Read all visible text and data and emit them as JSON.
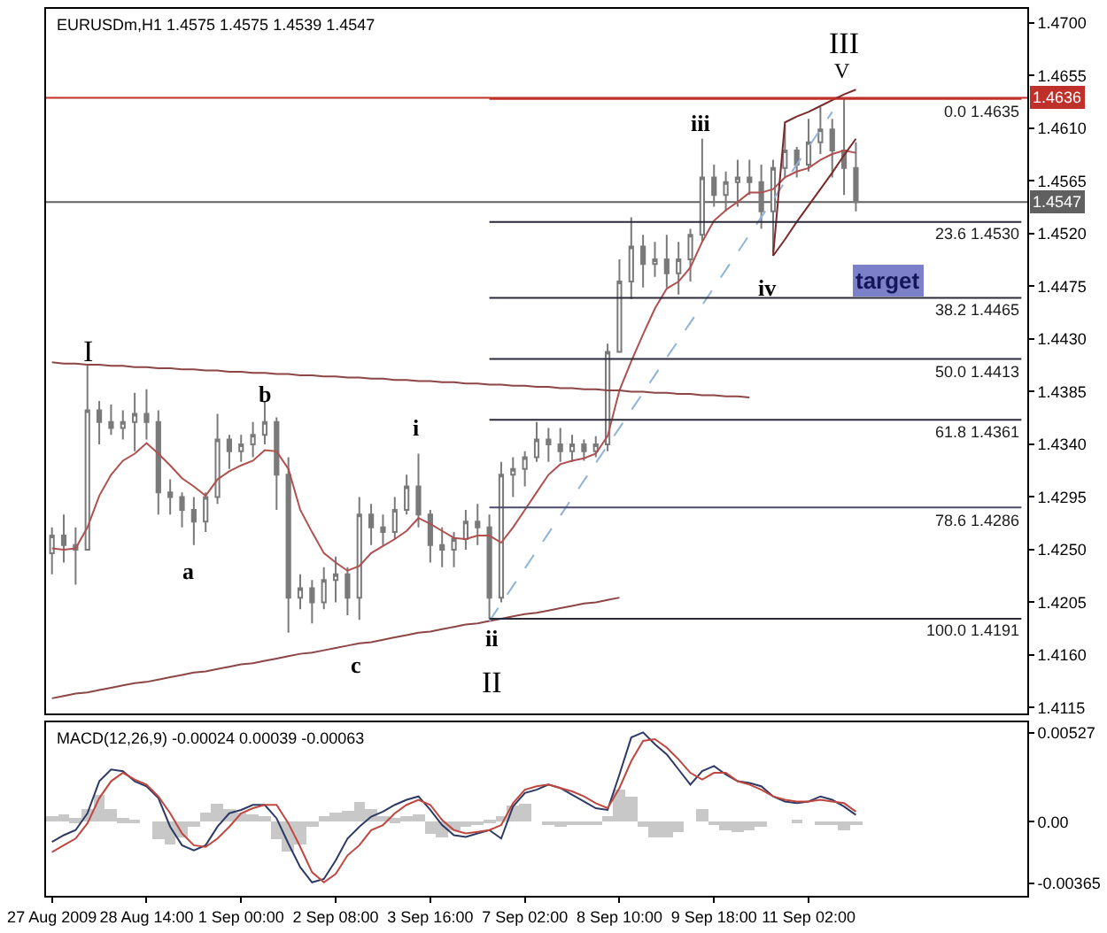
{
  "chart_data": [
    {
      "type": "candlestick",
      "title": "EURUSDm,H1 1.4575 1.4575 1.4539 1.4547",
      "categories": [
        null,
        null,
        null,
        null,
        null,
        null,
        null,
        null,
        null,
        null,
        null,
        null,
        null,
        null,
        null,
        null,
        null,
        null,
        null,
        null,
        null,
        null,
        null,
        null,
        null,
        null,
        null,
        null,
        null,
        null,
        null,
        null,
        null,
        null,
        null,
        null,
        null,
        null,
        null,
        null,
        null,
        null,
        null,
        null,
        null,
        null,
        null,
        null,
        null,
        null,
        null,
        null,
        null,
        null,
        null,
        null,
        null,
        null,
        null,
        null,
        null,
        null,
        null,
        null,
        null,
        null,
        null,
        null,
        null,
        null,
        null,
        null,
        null,
        null,
        null,
        null,
        null,
        null,
        null,
        null,
        null,
        null,
        null
      ],
      "ohlc": [
        [
          1.4247,
          1.4269,
          1.4229,
          1.4262
        ],
        [
          1.4262,
          1.428,
          1.4239,
          1.4254
        ],
        [
          1.4254,
          1.4269,
          1.422,
          1.425
        ],
        [
          1.425,
          1.4408,
          1.425,
          1.4369
        ],
        [
          1.4369,
          1.4377,
          1.434,
          1.4359
        ],
        [
          1.4359,
          1.4374,
          1.4348,
          1.4354
        ],
        [
          1.4354,
          1.4369,
          1.4344,
          1.4359
        ],
        [
          1.4359,
          1.4384,
          1.4334,
          1.4366
        ],
        [
          1.4366,
          1.4387,
          1.4344,
          1.4359
        ],
        [
          1.4359,
          1.4369,
          1.428,
          1.4299
        ],
        [
          1.4299,
          1.431,
          1.428,
          1.4295
        ],
        [
          1.4295,
          1.4299,
          1.4269,
          1.4284
        ],
        [
          1.4284,
          1.4295,
          1.4254,
          1.4274
        ],
        [
          1.4274,
          1.4299,
          1.4265,
          1.4295
        ],
        [
          1.4295,
          1.4366,
          1.4289,
          1.4344
        ],
        [
          1.4344,
          1.4348,
          1.4319,
          1.4334
        ],
        [
          1.4334,
          1.4348,
          1.4325,
          1.434
        ],
        [
          1.434,
          1.4359,
          1.4329,
          1.4348
        ],
        [
          1.4348,
          1.4377,
          1.434,
          1.4359
        ],
        [
          1.4359,
          1.4363,
          1.4284,
          1.4314
        ],
        [
          1.4314,
          1.4329,
          1.4179,
          1.4209
        ],
        [
          1.4209,
          1.4229,
          1.4199,
          1.4217
        ],
        [
          1.4217,
          1.4224,
          1.4187,
          1.4205
        ],
        [
          1.4205,
          1.4235,
          1.4199,
          1.4224
        ],
        [
          1.4224,
          1.4244,
          1.4205,
          1.4229
        ],
        [
          1.4229,
          1.4235,
          1.4194,
          1.4209
        ],
        [
          1.4209,
          1.4295,
          1.419,
          1.428
        ],
        [
          1.428,
          1.4289,
          1.4254,
          1.4269
        ],
        [
          1.4269,
          1.428,
          1.4254,
          1.4265
        ],
        [
          1.4265,
          1.4295,
          1.4259,
          1.4284
        ],
        [
          1.4284,
          1.4314,
          1.428,
          1.4304
        ],
        [
          1.4304,
          1.4332,
          1.4269,
          1.428
        ],
        [
          1.428,
          1.4284,
          1.4239,
          1.4254
        ],
        [
          1.4254,
          1.4269,
          1.4235,
          1.425
        ],
        [
          1.425,
          1.4265,
          1.4235,
          1.4259
        ],
        [
          1.4259,
          1.4284,
          1.425,
          1.4274
        ],
        [
          1.4274,
          1.4289,
          1.4254,
          1.4269
        ],
        [
          1.4269,
          1.428,
          1.4191,
          1.4209
        ],
        [
          1.4209,
          1.4325,
          1.4205,
          1.4314
        ],
        [
          1.4314,
          1.4329,
          1.4295,
          1.4319
        ],
        [
          1.4319,
          1.4334,
          1.4304,
          1.4329
        ],
        [
          1.4329,
          1.4359,
          1.4325,
          1.4344
        ],
        [
          1.4344,
          1.4354,
          1.4325,
          1.434
        ],
        [
          1.434,
          1.4354,
          1.4325,
          1.4334
        ],
        [
          1.4334,
          1.4348,
          1.4325,
          1.434
        ],
        [
          1.434,
          1.4344,
          1.4326,
          1.4334
        ],
        [
          1.4334,
          1.4347,
          1.4329,
          1.434
        ],
        [
          1.434,
          1.4426,
          1.4334,
          1.4419
        ],
        [
          1.4419,
          1.4498,
          1.4419,
          1.4479
        ],
        [
          1.4479,
          1.4534,
          1.4464,
          1.4509
        ],
        [
          1.4509,
          1.4519,
          1.4474,
          1.4494
        ],
        [
          1.4494,
          1.4513,
          1.4483,
          1.4498
        ],
        [
          1.4498,
          1.4519,
          1.4474,
          1.4486
        ],
        [
          1.4486,
          1.4513,
          1.4468,
          1.4498
        ],
        [
          1.4498,
          1.4524,
          1.4479,
          1.4519
        ],
        [
          1.4519,
          1.4601,
          1.4513,
          1.4568
        ],
        [
          1.4568,
          1.4579,
          1.4543,
          1.4553
        ],
        [
          1.4553,
          1.4573,
          1.4539,
          1.4564
        ],
        [
          1.4564,
          1.4583,
          1.4543,
          1.4568
        ],
        [
          1.4568,
          1.4583,
          1.4553,
          1.4564
        ],
        [
          1.4564,
          1.4579,
          1.4524,
          1.4539
        ],
        [
          1.4539,
          1.4583,
          1.4504,
          1.4576
        ],
        [
          1.4576,
          1.4613,
          1.4568,
          1.4591
        ],
        [
          1.4591,
          1.4594,
          1.4568,
          1.4579
        ],
        [
          1.4579,
          1.4618,
          1.4573,
          1.4598
        ],
        [
          1.4598,
          1.4628,
          1.4588,
          1.4609
        ],
        [
          1.4609,
          1.4618,
          1.4568,
          1.4591
        ],
        [
          1.4591,
          1.4636,
          1.4553,
          1.4576
        ],
        [
          1.4576,
          1.4598,
          1.4539,
          1.4547
        ],
        null,
        null,
        null,
        null,
        null,
        null,
        null,
        null,
        null,
        null,
        null,
        null,
        null,
        null
      ],
      "color": "#7a7a7a",
      "series": [
        {
          "type": "line",
          "color": "#b05050",
          "values": [
            1.4251,
            1.425,
            1.4251,
            1.4269,
            1.4296,
            1.4314,
            1.4326,
            1.4332,
            1.4341,
            1.4332,
            1.4322,
            1.4311,
            1.4304,
            1.4296,
            1.431,
            1.4317,
            1.4322,
            1.4326,
            1.4335,
            1.4334,
            1.4319,
            1.4284,
            1.4265,
            1.4247,
            1.4239,
            1.4232,
            1.4236,
            1.4247,
            1.4253,
            1.4259,
            1.4266,
            1.4277,
            1.4272,
            1.4266,
            1.426,
            1.4259,
            1.4262,
            1.4262,
            1.4256,
            1.4269,
            1.4284,
            1.4299,
            1.4314,
            1.4323,
            1.4326,
            1.4328,
            1.4332,
            1.4347,
            1.4386,
            1.4411,
            1.4434,
            1.4456,
            1.4473,
            1.4479,
            1.4491,
            1.4513,
            1.4531,
            1.454,
            1.4547,
            1.4555,
            1.4555,
            1.4558,
            1.4568,
            1.4573,
            1.4576,
            1.4583,
            1.4588,
            1.4591,
            1.4589,
            null,
            null,
            null,
            null,
            null,
            null,
            null,
            null,
            null,
            null,
            null,
            null,
            null,
            null
          ]
        },
        {
          "type": "line",
          "color": "#8c4646",
          "values": [
            1.441,
            1.4409,
            1.4409,
            1.4408,
            1.4408,
            1.4407,
            1.4407,
            1.4406,
            1.4406,
            1.4405,
            1.4405,
            1.4404,
            1.4404,
            1.4403,
            1.4403,
            1.4402,
            1.4402,
            1.4401,
            1.4401,
            1.44,
            1.44,
            1.4399,
            1.4399,
            1.4398,
            1.4398,
            1.4397,
            1.4397,
            1.4396,
            1.4396,
            1.4395,
            1.4395,
            1.4394,
            1.4394,
            1.4393,
            1.4393,
            1.4392,
            1.4392,
            1.4391,
            1.4391,
            1.439,
            1.439,
            1.4389,
            1.4389,
            1.4388,
            1.4388,
            1.4387,
            1.4387,
            1.4386,
            1.4386,
            1.4385,
            1.4385,
            1.4384,
            1.4384,
            1.4383,
            1.4383,
            1.4382,
            1.4382,
            1.4381,
            1.4381,
            1.438,
            null,
            null,
            null,
            null,
            null,
            null,
            null,
            null,
            null,
            null,
            null,
            null,
            null,
            null,
            null,
            null,
            null,
            null,
            null,
            null,
            null,
            null,
            null
          ]
        },
        {
          "type": "line",
          "color": "#8c4646",
          "values": [
            1.4123,
            1.4125,
            1.4127,
            1.4128,
            1.413,
            1.4132,
            1.4134,
            1.4136,
            1.4137,
            1.4139,
            1.4141,
            1.4143,
            1.4145,
            1.4146,
            1.4148,
            1.415,
            1.4152,
            1.4153,
            1.4155,
            1.4157,
            1.4159,
            1.4161,
            1.4162,
            1.4164,
            1.4166,
            1.4168,
            1.417,
            1.4171,
            1.4173,
            1.4175,
            1.4177,
            1.4179,
            1.418,
            1.4182,
            1.4184,
            1.4186,
            1.4187,
            1.4189,
            1.4191,
            1.4193,
            1.4195,
            1.4196,
            1.4198,
            1.42,
            1.4202,
            1.4204,
            1.4205,
            1.4207,
            1.4209,
            null,
            null,
            null,
            null,
            null,
            null,
            null,
            null,
            null,
            null,
            null,
            null,
            null,
            null,
            null,
            null,
            null,
            null,
            null,
            null,
            null,
            null,
            null,
            null,
            null,
            null,
            null,
            null,
            null,
            null,
            null,
            null,
            null,
            null
          ]
        },
        {
          "type": "line",
          "color": "#8fb3d9",
          "line_style": "dashed",
          "values": [
            null,
            null,
            null,
            null,
            null,
            null,
            null,
            null,
            null,
            null,
            null,
            null,
            null,
            null,
            null,
            null,
            null,
            null,
            null,
            null,
            null,
            null,
            null,
            null,
            null,
            null,
            null,
            null,
            null,
            null,
            null,
            null,
            null,
            null,
            null,
            null,
            null,
            1.4189,
            1.4204,
            1.4219,
            1.4234,
            1.4249,
            1.4264,
            1.4279,
            1.4294,
            1.4309,
            1.4324,
            1.4339,
            1.4354,
            1.4369,
            1.4384,
            1.4399,
            1.4414,
            1.4429,
            1.4444,
            1.4459,
            1.4474,
            1.4489,
            1.4504,
            1.4519,
            1.4534,
            1.4549,
            1.4564,
            1.4579,
            1.4594,
            1.4609,
            1.4624,
            null,
            null,
            null,
            null,
            null,
            null,
            null,
            null,
            null,
            null,
            null,
            null,
            null,
            null,
            null,
            null
          ]
        },
        {
          "type": "line",
          "color": "#7a2a2a",
          "values": [
            null,
            null,
            null,
            null,
            null,
            null,
            null,
            null,
            null,
            null,
            null,
            null,
            null,
            null,
            null,
            null,
            null,
            null,
            null,
            null,
            null,
            null,
            null,
            null,
            null,
            null,
            null,
            null,
            null,
            null,
            null,
            null,
            null,
            null,
            null,
            null,
            null,
            null,
            null,
            null,
            null,
            null,
            null,
            null,
            null,
            null,
            null,
            null,
            null,
            null,
            null,
            null,
            null,
            null,
            null,
            null,
            null,
            null,
            null,
            null,
            null,
            1.4501,
            1.4615,
            1.462,
            1.4624,
            1.4629,
            1.4634,
            1.4639,
            1.4643,
            null,
            null,
            null,
            null,
            null,
            null,
            null,
            null,
            null,
            null,
            null,
            null,
            null,
            null
          ]
        },
        {
          "type": "line",
          "color": "#7a2a2a",
          "values": [
            null,
            null,
            null,
            null,
            null,
            null,
            null,
            null,
            null,
            null,
            null,
            null,
            null,
            null,
            null,
            null,
            null,
            null,
            null,
            null,
            null,
            null,
            null,
            null,
            null,
            null,
            null,
            null,
            null,
            null,
            null,
            null,
            null,
            null,
            null,
            null,
            null,
            null,
            null,
            null,
            null,
            null,
            null,
            null,
            null,
            null,
            null,
            null,
            null,
            null,
            null,
            null,
            null,
            null,
            null,
            null,
            null,
            null,
            null,
            null,
            null,
            1.4501,
            1.4515,
            1.453,
            1.4544,
            1.4558,
            1.4572,
            1.4587,
            1.4601,
            null,
            null,
            null,
            null,
            null,
            null,
            null,
            null,
            null,
            null,
            null,
            null,
            null,
            null
          ]
        },
        {
          "type": "line",
          "name": "0.0 1.4635",
          "color": "#c0302a",
          "values": [
            null,
            null,
            null,
            null,
            null,
            null,
            null,
            null,
            null,
            null,
            null,
            null,
            null,
            null,
            null,
            null,
            null,
            null,
            null,
            null,
            null,
            null,
            null,
            null,
            null,
            null,
            null,
            null,
            null,
            null,
            null,
            null,
            null,
            null,
            null,
            null,
            null,
            1.4635,
            1.4635,
            1.4635,
            1.4635,
            1.4635,
            1.4635,
            1.4635,
            1.4635,
            1.4635,
            1.4635,
            1.4635,
            1.4635,
            1.4635,
            1.4635,
            1.4635,
            1.4635,
            1.4635,
            1.4635,
            1.4635,
            1.4635,
            1.4635,
            1.4635,
            1.4635,
            1.4635,
            1.4635,
            1.4635,
            1.4635,
            1.4635,
            1.4635,
            1.4635,
            1.4635,
            1.4635,
            1.4635,
            1.4635,
            1.4635,
            1.4635,
            1.4635,
            1.4635,
            1.4635,
            1.4635,
            1.4635,
            1.4635,
            1.4635,
            1.4635,
            1.4635,
            1.4635
          ]
        },
        {
          "type": "line",
          "name": "23.6 1.4530",
          "color": "#2a2a3a",
          "values": [
            null,
            null,
            null,
            null,
            null,
            null,
            null,
            null,
            null,
            null,
            null,
            null,
            null,
            null,
            null,
            null,
            null,
            null,
            null,
            null,
            null,
            null,
            null,
            null,
            null,
            null,
            null,
            null,
            null,
            null,
            null,
            null,
            null,
            null,
            null,
            null,
            null,
            1.453,
            1.453,
            1.453,
            1.453,
            1.453,
            1.453,
            1.453,
            1.453,
            1.453,
            1.453,
            1.453,
            1.453,
            1.453,
            1.453,
            1.453,
            1.453,
            1.453,
            1.453,
            1.453,
            1.453,
            1.453,
            1.453,
            1.453,
            1.453,
            1.453,
            1.453,
            1.453,
            1.453,
            1.453,
            1.453,
            1.453,
            1.453,
            1.453,
            1.453,
            1.453,
            1.453,
            1.453,
            1.453,
            1.453,
            1.453,
            1.453,
            1.453,
            1.453,
            1.453,
            1.453,
            1.453
          ]
        },
        {
          "type": "line",
          "name": "38.2 1.4465",
          "color": "#2a2a3a",
          "values": [
            null,
            null,
            null,
            null,
            null,
            null,
            null,
            null,
            null,
            null,
            null,
            null,
            null,
            null,
            null,
            null,
            null,
            null,
            null,
            null,
            null,
            null,
            null,
            null,
            null,
            null,
            null,
            null,
            null,
            null,
            null,
            null,
            null,
            null,
            null,
            null,
            null,
            1.4465,
            1.4465,
            1.4465,
            1.4465,
            1.4465,
            1.4465,
            1.4465,
            1.4465,
            1.4465,
            1.4465,
            1.4465,
            1.4465,
            1.4465,
            1.4465,
            1.4465,
            1.4465,
            1.4465,
            1.4465,
            1.4465,
            1.4465,
            1.4465,
            1.4465,
            1.4465,
            1.4465,
            1.4465,
            1.4465,
            1.4465,
            1.4465,
            1.4465,
            1.4465,
            1.4465,
            1.4465,
            1.4465,
            1.4465,
            1.4465,
            1.4465,
            1.4465,
            1.4465,
            1.4465,
            1.4465,
            1.4465,
            1.4465,
            1.4465,
            1.4465,
            1.4465,
            1.4465
          ]
        },
        {
          "type": "line",
          "name": "50.0 1.4413",
          "color": "#2a2a3a",
          "values": [
            null,
            null,
            null,
            null,
            null,
            null,
            null,
            null,
            null,
            null,
            null,
            null,
            null,
            null,
            null,
            null,
            null,
            null,
            null,
            null,
            null,
            null,
            null,
            null,
            null,
            null,
            null,
            null,
            null,
            null,
            null,
            null,
            null,
            null,
            null,
            null,
            null,
            1.4413,
            1.4413,
            1.4413,
            1.4413,
            1.4413,
            1.4413,
            1.4413,
            1.4413,
            1.4413,
            1.4413,
            1.4413,
            1.4413,
            1.4413,
            1.4413,
            1.4413,
            1.4413,
            1.4413,
            1.4413,
            1.4413,
            1.4413,
            1.4413,
            1.4413,
            1.4413,
            1.4413,
            1.4413,
            1.4413,
            1.4413,
            1.4413,
            1.4413,
            1.4413,
            1.4413,
            1.4413,
            1.4413,
            1.4413,
            1.4413,
            1.4413,
            1.4413,
            1.4413,
            1.4413,
            1.4413,
            1.4413,
            1.4413,
            1.4413,
            1.4413,
            1.4413,
            1.4413
          ]
        },
        {
          "type": "line",
          "name": "61.8 1.4361",
          "color": "#2a2a3a",
          "values": [
            null,
            null,
            null,
            null,
            null,
            null,
            null,
            null,
            null,
            null,
            null,
            null,
            null,
            null,
            null,
            null,
            null,
            null,
            null,
            null,
            null,
            null,
            null,
            null,
            null,
            null,
            null,
            null,
            null,
            null,
            null,
            null,
            null,
            null,
            null,
            null,
            null,
            1.4361,
            1.4361,
            1.4361,
            1.4361,
            1.4361,
            1.4361,
            1.4361,
            1.4361,
            1.4361,
            1.4361,
            1.4361,
            1.4361,
            1.4361,
            1.4361,
            1.4361,
            1.4361,
            1.4361,
            1.4361,
            1.4361,
            1.4361,
            1.4361,
            1.4361,
            1.4361,
            1.4361,
            1.4361,
            1.4361,
            1.4361,
            1.4361,
            1.4361,
            1.4361,
            1.4361,
            1.4361,
            1.4361,
            1.4361,
            1.4361,
            1.4361,
            1.4361,
            1.4361,
            1.4361,
            1.4361,
            1.4361,
            1.4361,
            1.4361,
            1.4361,
            1.4361,
            1.4361
          ]
        },
        {
          "type": "line",
          "name": "78.6 1.4286",
          "color": "#4a4a6a",
          "values": [
            null,
            null,
            null,
            null,
            null,
            null,
            null,
            null,
            null,
            null,
            null,
            null,
            null,
            null,
            null,
            null,
            null,
            null,
            null,
            null,
            null,
            null,
            null,
            null,
            null,
            null,
            null,
            null,
            null,
            null,
            null,
            null,
            null,
            null,
            null,
            null,
            null,
            1.4286,
            1.4286,
            1.4286,
            1.4286,
            1.4286,
            1.4286,
            1.4286,
            1.4286,
            1.4286,
            1.4286,
            1.4286,
            1.4286,
            1.4286,
            1.4286,
            1.4286,
            1.4286,
            1.4286,
            1.4286,
            1.4286,
            1.4286,
            1.4286,
            1.4286,
            1.4286,
            1.4286,
            1.4286,
            1.4286,
            1.4286,
            1.4286,
            1.4286,
            1.4286,
            1.4286,
            1.4286,
            1.4286,
            1.4286,
            1.4286,
            1.4286,
            1.4286,
            1.4286,
            1.4286,
            1.4286,
            1.4286,
            1.4286,
            1.4286,
            1.4286,
            1.4286,
            1.4286
          ]
        },
        {
          "type": "line",
          "name": "100.0 1.4191",
          "color": "#2a2a3a",
          "values": [
            null,
            null,
            null,
            null,
            null,
            null,
            null,
            null,
            null,
            null,
            null,
            null,
            null,
            null,
            null,
            null,
            null,
            null,
            null,
            null,
            null,
            null,
            null,
            null,
            null,
            null,
            null,
            null,
            null,
            null,
            null,
            null,
            null,
            null,
            null,
            null,
            null,
            1.4191,
            1.4191,
            1.4191,
            1.4191,
            1.4191,
            1.4191,
            1.4191,
            1.4191,
            1.4191,
            1.4191,
            1.4191,
            1.4191,
            1.4191,
            1.4191,
            1.4191,
            1.4191,
            1.4191,
            1.4191,
            1.4191,
            1.4191,
            1.4191,
            1.4191,
            1.4191,
            1.4191,
            1.4191,
            1.4191,
            1.4191,
            1.4191,
            1.4191,
            1.4191,
            1.4191,
            1.4191,
            1.4191,
            1.4191,
            1.4191,
            1.4191,
            1.4191,
            1.4191,
            1.4191,
            1.4191,
            1.4191,
            1.4191,
            1.4191,
            1.4191,
            1.4191,
            1.4191
          ]
        }
      ],
      "ref_lines": [
        {
          "axis": "y",
          "value": 1.4636,
          "label": "1.4636",
          "color": "#c0302a"
        },
        {
          "axis": "y",
          "value": 1.4547,
          "label": "1.4547",
          "color": "#606060"
        }
      ],
      "annotations": [
        "I",
        "a",
        "b",
        "c",
        "i",
        "ii",
        "II",
        "iii",
        "iv",
        "V",
        "III",
        "target"
      ],
      "ylim": [
        1.411,
        1.4712
      ],
      "yticks": [
        {
          "value": 1.47,
          "label": "1.4700"
        },
        1.4655,
        {
          "value": 1.461,
          "label": "1.4610"
        },
        1.4565,
        {
          "value": 1.452,
          "label": "1.4520"
        },
        1.4475,
        {
          "value": 1.443,
          "label": "1.4430"
        },
        1.4385,
        {
          "value": 1.434,
          "label": "1.4340"
        },
        1.4295,
        {
          "value": 1.425,
          "label": "1.4250"
        },
        1.4205,
        {
          "value": 1.416,
          "label": "1.4160"
        },
        1.4115
      ],
      "tick_labels": "y"
    },
    {
      "type": "line",
      "title": "MACD(12,26,9) -0.00024 0.00039 -0.00063",
      "categories": [
        "27 Aug 2009",
        null,
        null,
        null,
        null,
        null,
        null,
        null,
        "28 Aug 14:00",
        null,
        null,
        null,
        null,
        null,
        null,
        null,
        "1 Sep 00:00",
        null,
        null,
        null,
        null,
        null,
        null,
        null,
        "2 Sep 08:00",
        null,
        null,
        null,
        null,
        null,
        null,
        null,
        "3 Sep 16:00",
        null,
        null,
        null,
        null,
        null,
        null,
        null,
        "7 Sep 02:00",
        null,
        null,
        null,
        null,
        null,
        null,
        null,
        "8 Sep 10:00",
        null,
        null,
        null,
        null,
        null,
        null,
        null,
        "9 Sep 18:00",
        null,
        null,
        null,
        null,
        null,
        null,
        null,
        "11 Sep 02:00",
        null,
        null,
        null,
        null,
        null,
        null,
        null,
        null,
        null,
        null,
        null,
        null,
        null,
        null,
        null,
        null,
        null,
        null
      ],
      "series": [
        {
          "type": "bar",
          "color": "#c8c8c8",
          "values": [
            0.0003,
            0.0004,
            0.0002,
            0.0007,
            0.0016,
            0.0007,
            0.0002,
            0.0001,
            0.0,
            -0.001,
            -0.0014,
            -0.0009,
            -0.0003,
            0.0005,
            0.0011,
            0.0007,
            0.0005,
            0.0004,
            0.0003,
            -0.001,
            -0.0018,
            -0.0014,
            -0.0003,
            0.0003,
            0.0005,
            0.0006,
            0.0012,
            0.0007,
            0.0003,
            0.0002,
            0.0003,
            0.0004,
            -0.0007,
            -0.0009,
            -0.0005,
            -0.0003,
            -0.0002,
            0.0001,
            0.0003,
            0.001,
            0.0011,
            0.0,
            -0.0002,
            -0.0003,
            -0.0002,
            -0.0001,
            -0.0001,
            0.0003,
            0.0019,
            0.0015,
            -0.0003,
            -0.0009,
            -0.0009,
            -0.0006,
            0.0,
            0.0007,
            -0.0001,
            -0.0005,
            -0.0006,
            -0.0005,
            -0.0003,
            0.0,
            0.0,
            0.0001,
            0.0,
            -0.0001,
            -0.0002,
            -0.0005,
            -0.0002,
            null,
            null,
            null,
            null,
            null,
            null,
            null,
            null,
            null,
            null,
            null,
            null,
            null,
            null
          ]
        },
        {
          "type": "line",
          "color": "#2e3a66",
          "values": [
            -0.0012,
            -0.0008,
            -0.0005,
            0.0005,
            0.0024,
            0.0031,
            0.003,
            0.0024,
            0.0021,
            0.0014,
            -0.0003,
            -0.0014,
            -0.0017,
            -0.0014,
            -0.0003,
            0.0005,
            0.0007,
            0.001,
            0.001,
            0.0002,
            -0.0013,
            -0.0027,
            -0.0036,
            -0.0034,
            -0.0023,
            -0.001,
            -0.0003,
            0.0003,
            0.0006,
            0.001,
            0.0013,
            0.0015,
            0.0007,
            -0.0002,
            -0.0008,
            -0.0009,
            -0.0007,
            -0.0005,
            -0.001,
            0.0009,
            0.0017,
            0.0019,
            0.0022,
            0.002,
            0.0016,
            0.0012,
            0.0008,
            0.0007,
            0.0028,
            0.005,
            0.0053,
            0.0046,
            0.004,
            0.0031,
            0.0022,
            0.003,
            0.0033,
            0.0028,
            0.0024,
            0.0023,
            0.0021,
            0.0015,
            0.0012,
            0.0011,
            0.0012,
            0.0015,
            0.0013,
            0.0009,
            0.0004,
            null,
            null,
            null,
            null,
            null,
            null,
            null,
            null,
            null,
            null,
            null,
            null,
            null,
            null
          ]
        },
        {
          "type": "line",
          "color": "#c0473f",
          "values": [
            -0.0018,
            -0.0014,
            -0.001,
            -0.0001,
            0.0014,
            0.0024,
            0.0029,
            0.0025,
            0.0022,
            0.0015,
            0.0005,
            -0.0007,
            -0.0014,
            -0.0015,
            -0.001,
            -0.0003,
            0.0005,
            0.0008,
            0.001,
            0.001,
            -0.0001,
            -0.0015,
            -0.003,
            -0.0036,
            -0.0031,
            -0.002,
            -0.0014,
            -0.0005,
            -0.0002,
            0.0005,
            0.001,
            0.0013,
            0.001,
            0.0001,
            -0.0005,
            -0.0007,
            -0.0006,
            -0.0005,
            -0.0002,
            0.0011,
            0.0019,
            0.0021,
            0.0022,
            0.002,
            0.0018,
            0.0015,
            0.0011,
            0.0008,
            0.002,
            0.0036,
            0.0048,
            0.0049,
            0.0044,
            0.0037,
            0.0029,
            0.0025,
            0.0029,
            0.0029,
            0.0024,
            0.0022,
            0.0019,
            0.0015,
            0.0013,
            0.0012,
            0.0012,
            0.0013,
            0.0012,
            0.0011,
            0.0006,
            null,
            null,
            null,
            null,
            null,
            null,
            null,
            null,
            null,
            null,
            null,
            null,
            null,
            null
          ]
        }
      ],
      "ylim": [
        -0.0044,
        0.0059
      ],
      "yticks": [
        0.00527,
        {
          "value": 0,
          "label": "0.00"
        },
        -0.00365
      ]
    }
  ]
}
